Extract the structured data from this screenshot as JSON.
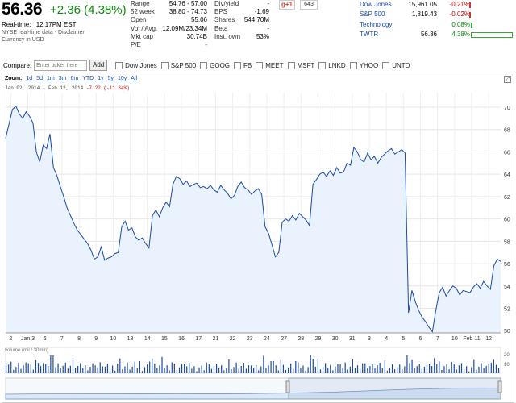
{
  "quote": {
    "price": "56.36",
    "change": "+2.36 (4.38%)",
    "realtime_label": "Real-time:",
    "realtime_time": "12:17PM EST",
    "sub1": "NYSE real-time data - Disclaimer",
    "sub2": "Currency in USD"
  },
  "stats1": [
    {
      "label": "Range",
      "value": "54.76 - 57.00"
    },
    {
      "label": "52 week",
      "value": "38.80 - 74.73"
    },
    {
      "label": "Open",
      "value": "55.06"
    },
    {
      "label": "Vol / Avg.",
      "value": "12.09M/23.34M"
    },
    {
      "label": "Mkt cap",
      "value": "30.74B"
    },
    {
      "label": "P/E",
      "value": "-"
    }
  ],
  "stats2": [
    {
      "label": "Div/yield",
      "value": "-"
    },
    {
      "label": "EPS",
      "value": "-1.69"
    },
    {
      "label": "Shares",
      "value": "544.70M"
    },
    {
      "label": "Beta",
      "value": "-"
    },
    {
      "label": "Inst. own",
      "value": "53%"
    }
  ],
  "social": {
    "gplus": "g+1",
    "count": "643"
  },
  "markets": [
    {
      "name": "Dow Jones",
      "value": "15,961.05",
      "pct": "-0.21%",
      "fraction": -0.21
    },
    {
      "name": "S&P 500",
      "value": "1,819.43",
      "pct": "-0.02%",
      "fraction": -0.02
    },
    {
      "name": "Technology",
      "value": "",
      "pct": "0.08%",
      "fraction": 0.08
    },
    {
      "name": "TWTR",
      "value": "56.36",
      "pct": "4.38%",
      "fraction": 4.38
    }
  ],
  "compare": {
    "label": "Compare:",
    "placeholder": "Enter ticker here",
    "add": "Add",
    "tickers": [
      "Dow Jones",
      "S&P 500",
      "GOOG",
      "FB",
      "MEET",
      "MSFT",
      "LNKD",
      "YHOO",
      "UNTD"
    ]
  },
  "zoom": {
    "label": "Zoom:",
    "options": [
      "1d",
      "5d",
      "1m",
      "3m",
      "6m",
      "YTD",
      "1y",
      "5y",
      "10y",
      "All"
    ],
    "range_text": "Jan 02, 2014 - Feb 12, 2014",
    "range_change": "-7.22 (-11.34%)"
  },
  "volume_label": "volume (mil / 30min)",
  "chart_data": {
    "type": "area",
    "y_ticks": [
      50,
      52,
      54,
      56,
      58,
      60,
      62,
      64,
      66,
      68,
      70
    ],
    "ylim": [
      49.8,
      71.3
    ],
    "x_ticks": [
      "2",
      "Jan 3",
      "6",
      "7",
      "8",
      "9",
      "10",
      "13",
      "14",
      "15",
      "16",
      "17",
      "21",
      "22",
      "23",
      "24",
      "27",
      "28",
      "29",
      "30",
      "31",
      "3",
      "4",
      "5",
      "6",
      "7",
      "10",
      "Feb 11",
      "12"
    ],
    "prices": [
      67.2,
      68.5,
      69.8,
      70.1,
      69.4,
      69.0,
      69.6,
      69.2,
      68.6,
      66.0,
      65.1,
      66.6,
      66.3,
      67.6,
      64.6,
      63.9,
      62.9,
      62.0,
      61.0,
      60.3,
      59.6,
      59.0,
      58.6,
      58.2,
      57.8,
      57.2,
      56.4,
      56.6,
      57.5,
      56.3,
      56.5,
      56.6,
      56.9,
      57.0,
      59.3,
      59.8,
      59.0,
      59.2,
      58.4,
      58.1,
      58.3,
      57.8,
      57.4,
      60.3,
      60.8,
      60.2,
      61.0,
      61.5,
      61.1,
      63.1,
      63.8,
      63.6,
      63.1,
      63.4,
      62.9,
      63.1,
      63.2,
      62.8,
      62.9,
      62.7,
      63.0,
      62.6,
      62.4,
      63.0,
      62.6,
      62.3,
      61.8,
      62.1,
      62.9,
      63.3,
      62.8,
      62.6,
      62.2,
      62.5,
      62.7,
      62.2,
      59.3,
      58.7,
      57.7,
      56.6,
      57.0,
      59.7,
      60.0,
      59.8,
      60.3,
      59.9,
      60.5,
      60.2,
      59.9,
      59.4,
      63.1,
      63.5,
      64.0,
      64.2,
      63.8,
      64.3,
      63.9,
      64.6,
      64.1,
      64.2,
      65.0,
      64.8,
      66.4,
      66.0,
      65.3,
      65.1,
      65.9,
      65.3,
      65.6,
      65.0,
      65.5,
      65.8,
      66.1,
      66.3,
      65.8,
      66.0,
      66.2,
      65.9,
      51.6,
      53.6,
      52.6,
      51.8,
      51.2,
      50.8,
      50.3,
      49.9,
      51.8,
      53.4,
      53.9,
      53.1,
      53.6,
      54.0,
      53.8,
      53.2,
      53.6,
      53.5,
      53.4,
      53.9,
      54.2,
      53.8,
      54.4,
      54.0,
      53.7,
      55.8,
      56.4,
      56.2
    ]
  }
}
